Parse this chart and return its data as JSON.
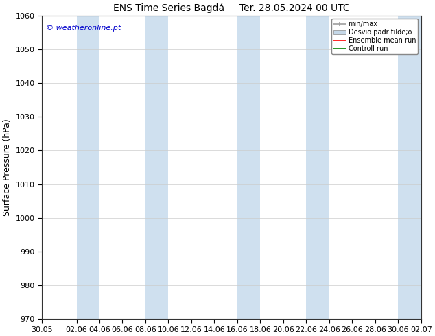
{
  "title": "ENS Time Series Bagdá     Ter. 28.05.2024 00 UTC",
  "ylabel": "Surface Pressure (hPa)",
  "ylim": [
    970,
    1060
  ],
  "yticks": [
    970,
    980,
    990,
    1000,
    1010,
    1020,
    1030,
    1040,
    1050,
    1060
  ],
  "xlabels": [
    "30.05",
    "02.06",
    "04.06",
    "06.06",
    "08.06",
    "10.06",
    "12.06",
    "14.06",
    "16.06",
    "18.06",
    "20.06",
    "22.06",
    "24.06",
    "26.06",
    "28.06",
    "30.06",
    "02.07"
  ],
  "x_values": [
    0,
    3,
    5,
    7,
    9,
    11,
    13,
    15,
    17,
    19,
    21,
    23,
    25,
    27,
    29,
    31,
    33
  ],
  "watermark": "© weatheronline.pt",
  "legend_entry_0": "min/max",
  "legend_entry_1": "Desvio padr tilde;o",
  "legend_entry_2": "Ensemble mean run",
  "legend_entry_3": "Controll run",
  "band_color": "#cfe0ef",
  "background_color": "#ffffff",
  "title_fontsize": 10,
  "axis_label_fontsize": 9,
  "tick_fontsize": 8,
  "ensemble_mean_color": "#ff0000",
  "control_run_color": "#008000",
  "minmax_color": "#9e9e9e",
  "stddev_color": "#c5d8e8",
  "xmin": 0,
  "xmax": 33
}
